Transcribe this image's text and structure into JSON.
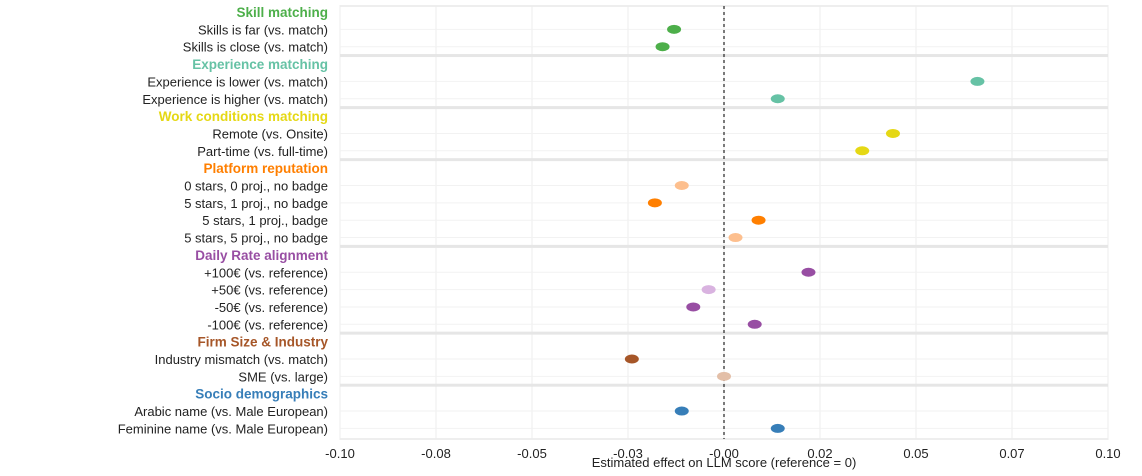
{
  "chart_data": {
    "type": "scatter",
    "orientation": "horizontal-dot-plot",
    "title": "",
    "xlabel": "Estimated effect on LLM score (reference = 0)",
    "ylabel": "",
    "xlim": [
      -0.1,
      0.1
    ],
    "x_ticks": [
      "-0.10",
      "-0.08",
      "-0.05",
      "-0.03",
      "-0.00",
      "0.02",
      "0.05",
      "0.07",
      "0.10"
    ],
    "reference_line": 0,
    "grid": true,
    "legend": "none",
    "groups": [
      {
        "name": "Skill matching",
        "color": "#4daf4a",
        "items": [
          {
            "label": "Skills is far (vs. match)",
            "x": -0.013,
            "color": "#4daf4a"
          },
          {
            "label": "Skills is close (vs. match)",
            "x": -0.016,
            "color": "#4daf4a"
          }
        ]
      },
      {
        "name": "Experience matching",
        "color": "#66c2a5",
        "items": [
          {
            "label": "Experience is lower (vs. match)",
            "x": 0.066,
            "color": "#66c2a5"
          },
          {
            "label": "Experience is higher (vs. match)",
            "x": 0.014,
            "color": "#66c2a5"
          }
        ]
      },
      {
        "name": "Work conditions matching",
        "color": "#e5d815",
        "items": [
          {
            "label": "Remote (vs. Onsite)",
            "x": 0.044,
            "color": "#e5d815"
          },
          {
            "label": "Part-time (vs. full-time)",
            "x": 0.036,
            "color": "#e5d815"
          }
        ]
      },
      {
        "name": "Platform reputation",
        "color": "#ff7f00",
        "items": [
          {
            "label": "0 stars, 0 proj., no badge",
            "x": -0.011,
            "color": "#fdbf8e"
          },
          {
            "label": "5 stars, 1 proj., no badge",
            "x": -0.018,
            "color": "#ff7f00"
          },
          {
            "label": "5 stars, 1 proj., badge",
            "x": 0.009,
            "color": "#ff7f00"
          },
          {
            "label": "5 stars, 5 proj., no badge",
            "x": 0.003,
            "color": "#fdbf8e"
          }
        ]
      },
      {
        "name": "Daily Rate alignment",
        "color": "#984ea3",
        "items": [
          {
            "label": "+100€ (vs. reference)",
            "x": 0.022,
            "color": "#984ea3"
          },
          {
            "label": "+50€ (vs. reference)",
            "x": -0.004,
            "color": "#d9b3e0"
          },
          {
            "label": "-50€ (vs. reference)",
            "x": -0.008,
            "color": "#984ea3"
          },
          {
            "label": "-100€ (vs. reference)",
            "x": 0.008,
            "color": "#984ea3"
          }
        ]
      },
      {
        "name": "Firm Size & Industry",
        "color": "#a65628",
        "items": [
          {
            "label": "Industry mismatch (vs. match)",
            "x": -0.024,
            "color": "#a65628"
          },
          {
            "label": "SME (vs. large)",
            "x": 0.0,
            "color": "#e3bfa8"
          }
        ]
      },
      {
        "name": "Socio demographics",
        "color": "#377eb8",
        "items": [
          {
            "label": "Arabic name (vs. Male European)",
            "x": -0.011,
            "color": "#377eb8"
          },
          {
            "label": "Feminine name (vs. Male European)",
            "x": 0.014,
            "color": "#377eb8"
          }
        ]
      }
    ]
  }
}
